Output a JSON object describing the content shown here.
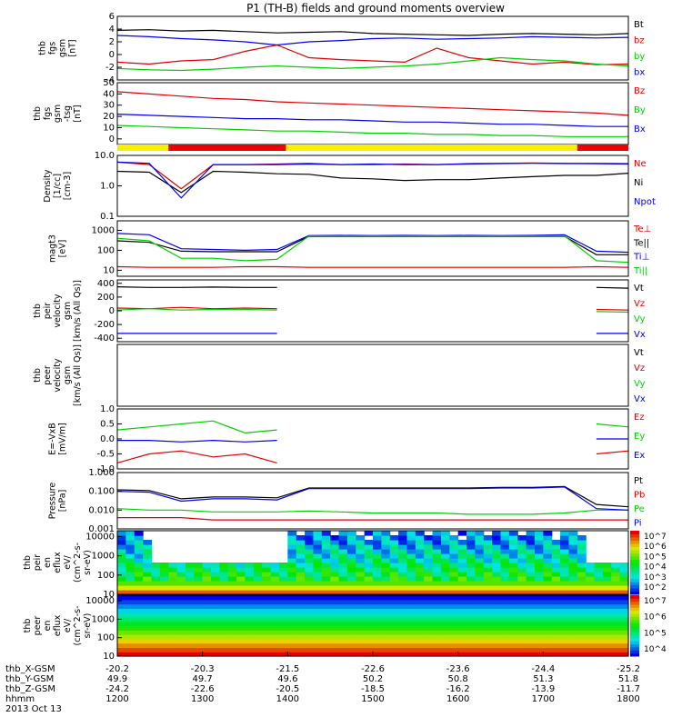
{
  "title": "P1 (TH-B) fields and ground moments overview",
  "date_label": "2013 Oct 13",
  "colors": {
    "black": "#000000",
    "red": "#e00000",
    "green": "#00d000",
    "blue": "#0000ee",
    "yellow": "#f8f000",
    "barred": "#ee0000"
  },
  "chart_data": [
    {
      "type": "line",
      "ylabel": [
        "thb",
        "fgs",
        "gsm",
        "[nT]"
      ],
      "ylim": [
        -4,
        6
      ],
      "yticks": [
        -4,
        -2,
        0,
        2,
        4,
        6
      ],
      "grid": false,
      "series": [
        {
          "name": "Bt",
          "color": "#000000",
          "values": [
            3.8,
            3.9,
            3.7,
            3.8,
            3.6,
            3.4,
            3.5,
            3.6,
            3.3,
            3.2,
            3.1,
            3.0,
            3.2,
            3.3,
            3.2,
            3.1,
            3.3
          ]
        },
        {
          "name": "bz",
          "color": "#e00000",
          "values": [
            -1.2,
            -1.5,
            -1.0,
            -0.8,
            0.5,
            1.5,
            -0.5,
            -0.8,
            -1.0,
            -1.2,
            1.0,
            -0.5,
            -1.0,
            -1.5,
            -1.2,
            -1.6,
            -1.5
          ]
        },
        {
          "name": "by",
          "color": "#00d000",
          "values": [
            -2.2,
            -2.4,
            -2.5,
            -2.3,
            -2.0,
            -1.8,
            -2.0,
            -2.2,
            -2.0,
            -1.8,
            -1.5,
            -1.0,
            -0.5,
            -0.8,
            -1.0,
            -1.5,
            -1.8
          ]
        },
        {
          "name": "bx",
          "color": "#0000ee",
          "values": [
            3.0,
            2.8,
            2.5,
            2.3,
            2.0,
            1.5,
            2.0,
            2.2,
            2.5,
            2.6,
            2.4,
            2.5,
            2.6,
            2.8,
            2.7,
            2.6,
            2.7
          ]
        }
      ]
    },
    {
      "type": "line",
      "ylabel": [
        "thb",
        "fgs",
        "gsm",
        "-tsg",
        "[nT]"
      ],
      "ylim": [
        -5,
        50
      ],
      "yticks": [
        0,
        10,
        20,
        30,
        40,
        50
      ],
      "tick_labels": [
        "0",
        "10",
        "20",
        "30",
        "40",
        "50"
      ],
      "series": [
        {
          "name": "Bz",
          "color": "#e00000",
          "values": [
            42,
            40,
            38,
            36,
            35,
            33,
            32,
            31,
            30,
            29,
            28,
            27,
            26,
            25,
            24,
            23,
            21
          ]
        },
        {
          "name": "By",
          "color": "#00d000",
          "values": [
            12,
            11,
            10,
            9,
            8,
            7,
            7,
            6,
            5,
            5,
            4,
            4,
            3,
            3,
            2,
            2,
            2
          ]
        },
        {
          "name": "Bx",
          "color": "#0000ee",
          "values": [
            22,
            21,
            20,
            19,
            18,
            18,
            17,
            17,
            16,
            15,
            15,
            14,
            13,
            13,
            12,
            11,
            11
          ]
        }
      ]
    },
    {
      "type": "bar",
      "note": "mode bar",
      "segments": [
        {
          "from": 0.0,
          "to": 0.1,
          "color": "#f8f000"
        },
        {
          "from": 0.1,
          "to": 0.33,
          "color": "#ee0000"
        },
        {
          "from": 0.33,
          "to": 0.9,
          "color": "#f8f000"
        },
        {
          "from": 0.9,
          "to": 1.0,
          "color": "#ee0000"
        }
      ]
    },
    {
      "type": "line",
      "scale": "log",
      "ylabel": [
        "Density",
        "[1/cc]",
        "[cm-3]"
      ],
      "ylim": [
        0.1,
        10
      ],
      "yticks": [
        0.1,
        1.0,
        10.0
      ],
      "tick_labels": [
        "0.1",
        "1.0",
        "10.0"
      ],
      "series": [
        {
          "name": "Ne",
          "color": "#e00000",
          "values": [
            6,
            5,
            0.8,
            5,
            5,
            5.2,
            5.5,
            5,
            5,
            5.2,
            5,
            5.4,
            5.5,
            5.6,
            5.5,
            5.5,
            5.4
          ]
        },
        {
          "name": "Ni",
          "color": "#000000",
          "values": [
            3,
            2.8,
            0.6,
            3,
            2.8,
            2.5,
            2.4,
            1.8,
            1.7,
            1.5,
            1.6,
            1.6,
            1.8,
            2.0,
            2.2,
            2.2,
            2.6
          ]
        },
        {
          "name": "Npot",
          "color": "#0000ee",
          "values": [
            6,
            5.5,
            0.4,
            5,
            5,
            5,
            5.2,
            5,
            5.2,
            5,
            5,
            5.2,
            5.4,
            5.5,
            5.4,
            5.3,
            5.2
          ]
        }
      ]
    },
    {
      "type": "line",
      "scale": "log",
      "ylabel": [
        "magt3",
        "[eV]"
      ],
      "ylim": [
        5,
        3000
      ],
      "yticks": [
        10,
        100,
        1000
      ],
      "tick_labels": [
        "10",
        "100",
        "1000"
      ],
      "series": [
        {
          "name": "Te⊥",
          "color": "#e00000",
          "values": [
            15,
            14,
            14,
            14,
            15,
            15,
            14,
            14,
            14,
            14,
            14,
            14,
            14,
            14,
            14,
            15,
            14
          ]
        },
        {
          "name": "Te||",
          "color": "#000000",
          "values": [
            300,
            250,
            90,
            85,
            85,
            85,
            500,
            500,
            500,
            500,
            500,
            500,
            500,
            500,
            500,
            60,
            60
          ]
        },
        {
          "name": "Ti⊥",
          "color": "#0000ee",
          "values": [
            700,
            600,
            120,
            110,
            100,
            110,
            550,
            560,
            550,
            560,
            550,
            560,
            550,
            560,
            600,
            90,
            80
          ]
        },
        {
          "name": "Ti||",
          "color": "#00d000",
          "values": [
            400,
            300,
            40,
            40,
            30,
            35,
            520,
            520,
            520,
            520,
            520,
            520,
            520,
            520,
            520,
            30,
            25
          ]
        }
      ]
    },
    {
      "type": "line",
      "ylabel": [
        "thb",
        "peir",
        "velocity",
        "gsm",
        "[km/s (All Qs)]"
      ],
      "ylim": [
        -450,
        450
      ],
      "yticks": [
        -400,
        -200,
        0,
        200,
        400
      ],
      "tick_labels": [
        "-400",
        "-200",
        "0",
        "200",
        "400"
      ],
      "series": [
        {
          "name": "Vt",
          "color": "#000000",
          "values": [
            350,
            340,
            340,
            345,
            340,
            340,
            null,
            null,
            null,
            null,
            null,
            null,
            null,
            null,
            null,
            340,
            330
          ]
        },
        {
          "name": "Vz",
          "color": "#e00000",
          "values": [
            40,
            30,
            50,
            30,
            40,
            30,
            null,
            null,
            null,
            null,
            null,
            null,
            null,
            null,
            null,
            20,
            10
          ]
        },
        {
          "name": "Vy",
          "color": "#00d000",
          "values": [
            10,
            30,
            10,
            20,
            20,
            10,
            null,
            null,
            null,
            null,
            null,
            null,
            null,
            null,
            null,
            -10,
            -20
          ]
        },
        {
          "name": "Vx",
          "color": "#0000ee",
          "values": [
            -330,
            -330,
            -330,
            -330,
            -330,
            -330,
            null,
            null,
            null,
            null,
            null,
            null,
            null,
            null,
            null,
            -330,
            -330
          ]
        }
      ]
    },
    {
      "type": "line",
      "ylabel": [
        "thb",
        "peer",
        "velocity",
        "gsm",
        "[km/s (All Qs)]"
      ],
      "series": [
        {
          "name": "Vt",
          "color": "#000000",
          "values": []
        },
        {
          "name": "Vz",
          "color": "#e00000",
          "values": []
        },
        {
          "name": "Vy",
          "color": "#00d000",
          "values": []
        },
        {
          "name": "Vx",
          "color": "#0000ee",
          "values": []
        }
      ]
    },
    {
      "type": "line",
      "ylabel": [
        "E=-VxB",
        "[mV/m]"
      ],
      "ylim": [
        -1.0,
        1.0
      ],
      "yticks": [
        -1.0,
        -0.5,
        0.0,
        0.5,
        1.0
      ],
      "tick_labels": [
        "-1.0",
        "-0.5",
        "0.0",
        "0.5",
        "1.0"
      ],
      "series": [
        {
          "name": "Ez",
          "color": "#e00000",
          "values": [
            -0.8,
            -0.5,
            -0.4,
            -0.6,
            -0.5,
            -0.8,
            null,
            null,
            null,
            null,
            null,
            null,
            null,
            null,
            null,
            -0.5,
            -0.4
          ]
        },
        {
          "name": "Ey",
          "color": "#00d000",
          "values": [
            0.3,
            0.4,
            0.5,
            0.6,
            0.2,
            0.3,
            null,
            null,
            null,
            null,
            null,
            null,
            null,
            null,
            null,
            0.5,
            0.4
          ]
        },
        {
          "name": "Ex",
          "color": "#0000ee",
          "values": [
            -0.05,
            -0.05,
            -0.1,
            -0.05,
            -0.1,
            -0.05,
            null,
            null,
            null,
            null,
            null,
            null,
            null,
            null,
            null,
            0.0,
            0.0
          ]
        }
      ]
    },
    {
      "type": "line",
      "scale": "log",
      "ylabel": [
        "Pressure",
        "[nPa]"
      ],
      "ylim": [
        0.001,
        1.0
      ],
      "yticks": [
        0.001,
        0.01,
        0.1,
        1.0
      ],
      "tick_labels": [
        "0.001",
        "0.010",
        "0.100",
        "1.000"
      ],
      "series": [
        {
          "name": "Pt",
          "color": "#000000",
          "values": [
            0.12,
            0.11,
            0.04,
            0.05,
            0.05,
            0.045,
            0.15,
            0.15,
            0.15,
            0.15,
            0.15,
            0.15,
            0.16,
            0.16,
            0.18,
            0.02,
            0.015
          ]
        },
        {
          "name": "Pb",
          "color": "#e00000",
          "values": [
            0.004,
            0.004,
            0.004,
            0.003,
            0.003,
            0.003,
            0.003,
            0.003,
            0.003,
            0.003,
            0.003,
            0.003,
            0.003,
            0.003,
            0.003,
            0.003,
            0.003
          ]
        },
        {
          "name": "Pe",
          "color": "#00d000",
          "values": [
            0.012,
            0.01,
            0.01,
            0.008,
            0.008,
            0.008,
            0.009,
            0.008,
            0.007,
            0.007,
            0.007,
            0.006,
            0.006,
            0.006,
            0.007,
            0.01,
            0.01
          ]
        },
        {
          "name": "Pi",
          "color": "#0000ee",
          "values": [
            0.1,
            0.09,
            0.03,
            0.04,
            0.04,
            0.035,
            0.14,
            0.14,
            0.14,
            0.14,
            0.14,
            0.14,
            0.15,
            0.15,
            0.17,
            0.012,
            0.01
          ]
        }
      ]
    },
    {
      "type": "heatmap",
      "scale": "log",
      "ylabel": [
        "thb",
        "peir",
        "en",
        "eflux",
        "eV/",
        "(cm^2-s-",
        "sr-eV)"
      ],
      "ylim": [
        10,
        20000
      ],
      "yticks": [
        10,
        100,
        1000,
        10000
      ],
      "tick_labels": [
        "10",
        "100",
        "1000",
        "10000"
      ],
      "colorbar": {
        "ticks": [
          "10^2",
          "10^3",
          "10^4",
          "10^5",
          "10^6",
          "10^7"
        ]
      }
    },
    {
      "type": "heatmap",
      "scale": "log",
      "ylabel": [
        "thb",
        "peer",
        "en",
        "eflux",
        "eV/",
        "(cm^2-s-",
        "sr-eV)"
      ],
      "ylim": [
        10,
        20000
      ],
      "yticks": [
        10,
        100,
        1000,
        10000
      ],
      "tick_labels": [
        "10",
        "100",
        "1000",
        "10000"
      ],
      "colorbar": {
        "ticks": [
          "10^4",
          "10^5",
          "10^6",
          "10^7"
        ]
      }
    }
  ],
  "x_axis": {
    "row_labels": [
      "thb_X-GSM",
      "thb_Y-GSM",
      "thb_Z-GSM",
      "hhmm"
    ],
    "columns": [
      [
        "-20.2",
        "49.9",
        "-24.2",
        "1200"
      ],
      [
        "-20.3",
        "49.7",
        "-22.6",
        "1300"
      ],
      [
        "-21.5",
        "49.6",
        "-20.5",
        "1400"
      ],
      [
        "-22.6",
        "50.2",
        "-18.5",
        "1500"
      ],
      [
        "-23.6",
        "50.8",
        "-16.2",
        "1600"
      ],
      [
        "-24.4",
        "51.3",
        "-13.9",
        "1700"
      ],
      [
        "-25.2",
        "51.8",
        "-11.7",
        "1800"
      ]
    ]
  }
}
